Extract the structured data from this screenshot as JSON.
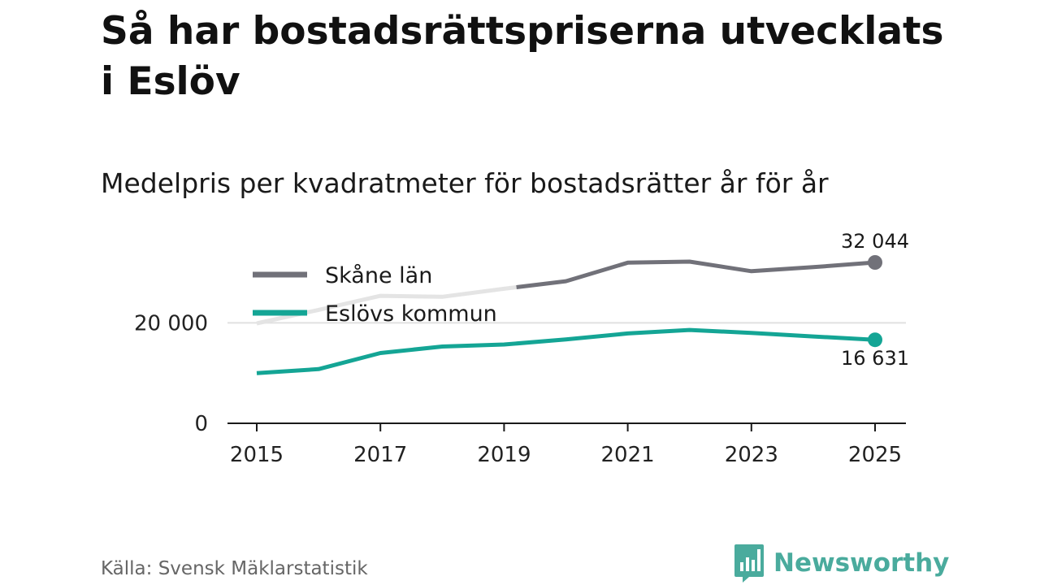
{
  "title": "Så har bostadsrättspriserna utvecklats i Eslöv",
  "subtitle": "Medelpris per kvadratmeter för bostadsrätter år för år",
  "source": "Källa: Svensk Mäklarstatistik",
  "brand": {
    "name": "Newsworthy",
    "color": "#4aab9d"
  },
  "colors": {
    "skane": "#717179",
    "skane_faded": "#e4e4e4",
    "eslov": "#14a595",
    "grid": "#e0e0e0",
    "axis": "#1a1a1a"
  },
  "chart_data": {
    "type": "line",
    "title": "Medelpris per kvadratmeter för bostadsrätter år för år",
    "xlabel": "",
    "ylabel": "",
    "x": [
      2015,
      2016,
      2017,
      2018,
      2019,
      2020,
      2021,
      2022,
      2023,
      2024,
      2025
    ],
    "xlim": [
      2015,
      2025
    ],
    "ylim": [
      0,
      32044
    ],
    "xticks": [
      "2015",
      "2017",
      "2019",
      "2021",
      "2023",
      "2025"
    ],
    "yticks": [
      "0",
      "20 000"
    ],
    "legend_position": "top-left",
    "series": [
      {
        "name": "Skåne län",
        "values": [
          19900,
          22600,
          25400,
          25200,
          26800,
          28300,
          32000,
          32200,
          30300,
          31100,
          32044
        ],
        "end_label": "32 044"
      },
      {
        "name": "Eslövs kommun",
        "values": [
          10000,
          10800,
          14000,
          15300,
          15700,
          16700,
          17900,
          18600,
          18000,
          17300,
          16631
        ],
        "end_label": "16 631"
      }
    ]
  }
}
